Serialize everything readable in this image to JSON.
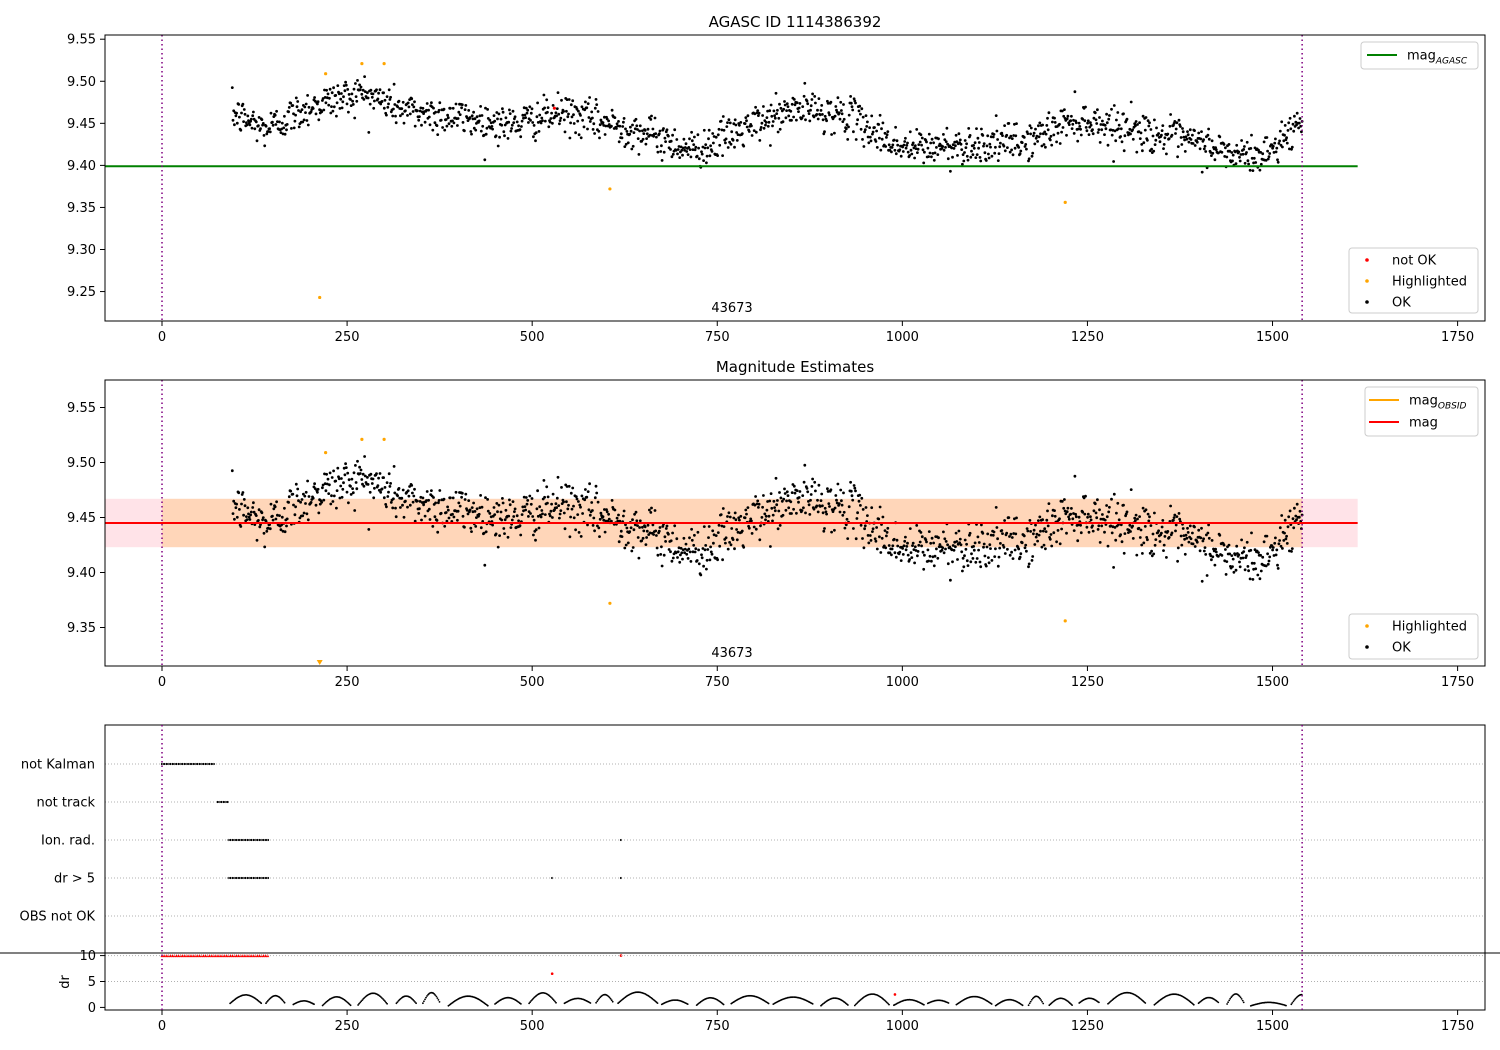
{
  "chart_data": [
    {
      "type": "scatter",
      "title": "AGASC ID 1114386392",
      "xlim": [
        -77,
        1787
      ],
      "ylim": [
        9.215,
        9.555
      ],
      "x_ticks": [
        0,
        250,
        500,
        750,
        1000,
        1250,
        1500,
        1750
      ],
      "y_ticks": [
        "9.25",
        "9.30",
        "9.35",
        "9.40",
        "9.45",
        "9.50",
        "9.55"
      ],
      "obsid_label": "43673",
      "obsid_boundaries": [
        0,
        1540
      ],
      "reference_line": {
        "value": 9.399,
        "x_range": [
          -77,
          1615
        ],
        "color": "#008000"
      },
      "line_legend": {
        "position": "top-right",
        "label": "mag",
        "subscript": "AGASC",
        "color": "#008000"
      },
      "point_legend": {
        "position": "bottom-right",
        "entries": [
          {
            "label": "not OK",
            "color": "#ff0000"
          },
          {
            "label": "Highlighted",
            "color": "#ffa500"
          },
          {
            "label": "OK",
            "color": "#000000"
          }
        ]
      },
      "highlighted_points": [
        [
          213,
          9.243
        ],
        [
          221,
          9.509
        ],
        [
          270,
          9.521
        ],
        [
          300,
          9.521
        ],
        [
          605,
          9.372
        ],
        [
          1220,
          9.356
        ]
      ],
      "not_ok_points": [
        [
          530,
          9.468
        ]
      ]
    },
    {
      "type": "scatter",
      "title": "Magnitude Estimates",
      "xlim": [
        -77,
        1787
      ],
      "ylim": [
        9.315,
        9.575
      ],
      "x_ticks": [
        0,
        250,
        500,
        750,
        1000,
        1250,
        1500,
        1750
      ],
      "y_ticks": [
        "9.35",
        "9.40",
        "9.45",
        "9.50",
        "9.55"
      ],
      "obsid_label": "43673",
      "obsid_boundaries": [
        0,
        1540
      ],
      "mean_line": {
        "value": 9.445,
        "color": "#ff0000"
      },
      "band": {
        "low": 9.423,
        "high": 9.467,
        "x_range": [
          -77,
          1615
        ]
      },
      "obsid_band": {
        "x_range": [
          0,
          1540
        ]
      },
      "line_legend": {
        "position": "top-right",
        "entries": [
          {
            "label": "mag",
            "subscript": "OBSID",
            "color": "#ffa500"
          },
          {
            "label": "mag",
            "subscript": "",
            "color": "#ff0000"
          }
        ]
      },
      "point_legend": {
        "position": "bottom-right",
        "entries": [
          {
            "label": "Highlighted",
            "color": "#ffa500"
          },
          {
            "label": "OK",
            "color": "#000000"
          }
        ]
      },
      "highlighted_points": [
        [
          221,
          9.509
        ],
        [
          270,
          9.521
        ],
        [
          300,
          9.521
        ],
        [
          605,
          9.372
        ],
        [
          1220,
          9.356
        ]
      ],
      "offscale_markers": [
        213
      ]
    },
    {
      "type": "scatter",
      "title": "",
      "rows": [
        "not Kalman",
        "not track",
        "Ion. rad.",
        "dr > 5",
        "OBS not OK"
      ],
      "row_segments": [
        [
          [
            0,
            72
          ]
        ],
        [
          [
            75,
            90
          ]
        ],
        [
          [
            90,
            145
          ]
        ],
        [
          [
            90,
            145
          ]
        ],
        []
      ],
      "row_isolated": [
        [],
        [],
        [
          620
        ],
        [
          527,
          620
        ],
        []
      ],
      "dr_panel": {
        "ylabel": "dr",
        "y_ticks": [
          "0",
          "5",
          "10"
        ],
        "ylim": [
          -0.5,
          10.5
        ],
        "clipped_value": 10,
        "clipped_range": [
          0,
          145
        ],
        "red_points": [
          [
            527,
            6.5
          ],
          [
            620,
            10
          ],
          [
            990,
            2.5
          ]
        ]
      },
      "x_ticks": [
        0,
        250,
        500,
        750,
        1000,
        1250,
        1500,
        1750
      ],
      "xlim": [
        -77,
        1787
      ],
      "obsid_boundaries": [
        0,
        1540
      ]
    }
  ]
}
